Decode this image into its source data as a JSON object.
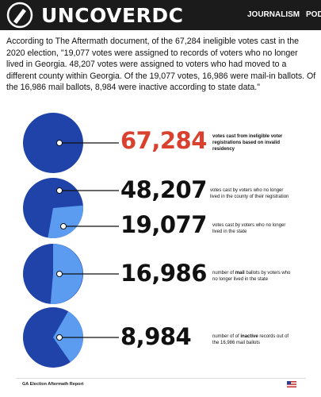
{
  "header": {
    "logo": "UNCOVERDC",
    "nav": [
      "JOURNALISM",
      "PODC"
    ]
  },
  "paragraph": "According to The Aftermath document, of the 67,284 ineligible votes cast in the 2020 election, \"19,077 votes were assigned to records of voters who no longer lived in Georgia. 48,207 votes were assigned to voters who had moved to a different county within Georgia. Of the 19,077 votes, 16,986 were mail-in ballots. Of the 16,986 mail ballots, 8,984 were inactive according to state data.\"",
  "stats": [
    {
      "number": "67,284",
      "text": [
        "votes cast from ineligible voter registrations based on invalid residency"
      ]
    },
    {
      "number": "48,207",
      "text": [
        "votes cast by voters who no longer lived in the county of their registration"
      ]
    },
    {
      "number": "19,077",
      "text": [
        "votes cast by voters who no longer lived in the state"
      ]
    },
    {
      "number": "16,986",
      "text": [
        "number of ",
        "mail",
        " ballots by voters who no longer lived in the state"
      ]
    },
    {
      "number": "8,984",
      "text": [
        "number of of ",
        "inactive",
        " records out of the 16,986 mail ballots"
      ]
    }
  ],
  "footer": "GA Election Aftermath Report"
}
